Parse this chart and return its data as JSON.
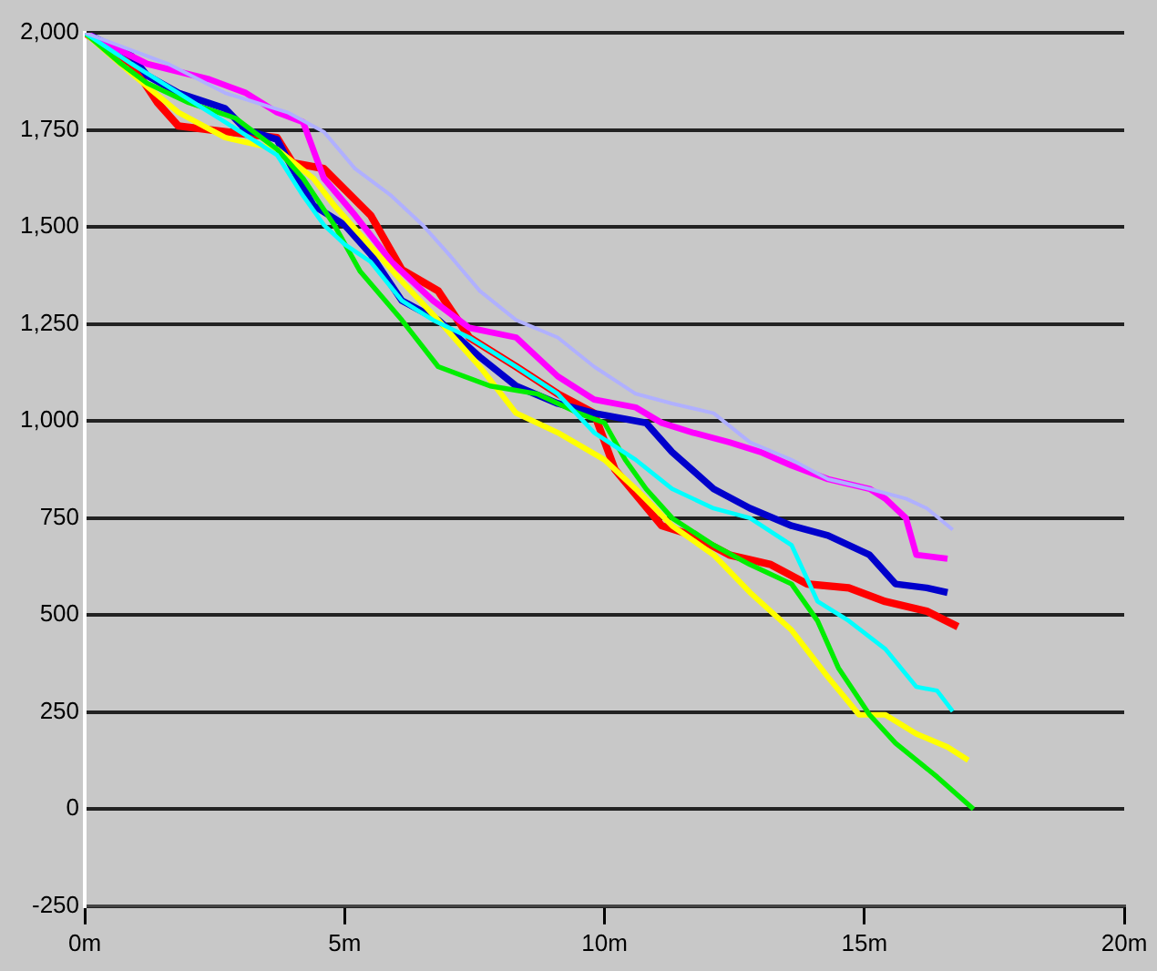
{
  "chart_data": {
    "type": "line",
    "xlim": [
      0,
      20
    ],
    "ylim": [
      -250,
      2000
    ],
    "xticks": [
      {
        "value": 0,
        "label": "0m"
      },
      {
        "value": 5,
        "label": "5m"
      },
      {
        "value": 10,
        "label": "10m"
      },
      {
        "value": 15,
        "label": "15m"
      },
      {
        "value": 20,
        "label": "20m"
      }
    ],
    "yticks": [
      {
        "value": -250,
        "label": "-250"
      },
      0,
      250,
      500,
      750,
      {
        "value": 1000,
        "label": "1,000"
      },
      {
        "value": 1250,
        "label": "1,250"
      },
      {
        "value": 1500,
        "label": "1,500"
      },
      {
        "value": 1750,
        "label": "1,750"
      },
      {
        "value": 2000,
        "label": "2,000"
      }
    ],
    "grid": "y",
    "legend": false,
    "marker": "none",
    "line_style": "solid",
    "series": [
      {
        "color": "#b0b0ff",
        "x": [
          0,
          1.6,
          2.7,
          3.9,
          4.6,
          5.2,
          5.9,
          6.5,
          7.0,
          7.6,
          8.3,
          9.1,
          9.8,
          10.6,
          11.3,
          12.1,
          12.8,
          13.6,
          14.3,
          15.1,
          15.8,
          16.2,
          16.7
        ],
        "values": [
          2000,
          1920,
          1845,
          1795,
          1745,
          1650,
          1580,
          1505,
          1430,
          1335,
          1260,
          1215,
          1140,
          1070,
          1045,
          1020,
          945,
          900,
          850,
          825,
          800,
          775,
          720
        ]
      },
      {
        "color": "#00ffff",
        "x": [
          0,
          0.9,
          1.8,
          2.7,
          3.7,
          4.2,
          4.6,
          5.0,
          5.5,
          6.1,
          6.7,
          7.4,
          8.3,
          9.1,
          9.8,
          10.6,
          11.3,
          12.1,
          12.8,
          13.6,
          14.1,
          14.7,
          15.4,
          16.0,
          16.4,
          16.7
        ],
        "values": [
          2000,
          1920,
          1845,
          1770,
          1685,
          1580,
          1505,
          1455,
          1410,
          1310,
          1260,
          1215,
          1140,
          1070,
          970,
          900,
          825,
          775,
          750,
          680,
          535,
          485,
          413,
          315,
          305,
          252
        ]
      },
      {
        "color": "#00ee00",
        "x": [
          0,
          0.7,
          1.2,
          2.0,
          2.9,
          3.7,
          4.2,
          4.8,
          5.3,
          6.1,
          6.8,
          7.8,
          8.7,
          9.5,
          10.0,
          10.4,
          10.8,
          11.3,
          12.1,
          12.8,
          13.6,
          14.1,
          14.5,
          15.1,
          15.6,
          16.4,
          17.1
        ],
        "values": [
          2000,
          1920,
          1870,
          1820,
          1780,
          1700,
          1625,
          1505,
          1385,
          1260,
          1140,
          1090,
          1070,
          1020,
          995,
          900,
          825,
          750,
          680,
          630,
          580,
          485,
          364,
          243,
          170,
          83,
          0
        ]
      },
      {
        "color": "#ffff00",
        "x": [
          0,
          0.9,
          1.8,
          2.7,
          3.7,
          4.4,
          4.8,
          5.3,
          6.1,
          6.8,
          7.6,
          8.3,
          9.1,
          10.0,
          10.6,
          11.3,
          12.1,
          12.8,
          13.6,
          14.3,
          14.9,
          15.4,
          16.0,
          16.6,
          17.0
        ],
        "values": [
          2000,
          1895,
          1795,
          1730,
          1700,
          1625,
          1555,
          1480,
          1360,
          1260,
          1140,
          1020,
          970,
          900,
          825,
          730,
          655,
          558,
          461,
          340,
          243,
          243,
          194,
          160,
          126
        ]
      },
      {
        "color": "#ff00ff",
        "x": [
          0,
          1.2,
          2.4,
          3.1,
          3.7,
          4.2,
          4.6,
          5.2,
          5.9,
          6.7,
          7.4,
          8.3,
          9.1,
          9.8,
          10.6,
          11.1,
          11.7,
          12.4,
          13.0,
          13.6,
          14.3,
          15.1,
          15.4,
          15.8,
          16.0,
          16.6
        ],
        "values": [
          2000,
          1920,
          1880,
          1845,
          1795,
          1770,
          1625,
          1530,
          1410,
          1310,
          1240,
          1215,
          1115,
          1055,
          1035,
          995,
          970,
          945,
          920,
          885,
          850,
          825,
          800,
          750,
          655,
          645
        ]
      },
      {
        "color": "#0000cc",
        "x": [
          0,
          0.9,
          1.2,
          1.8,
          2.7,
          3.1,
          3.7,
          4.0,
          4.4,
          5.0,
          5.5,
          6.1,
          6.8,
          7.6,
          8.3,
          9.1,
          9.8,
          10.8,
          11.3,
          12.1,
          12.8,
          13.6,
          14.3,
          15.1,
          15.6,
          16.2,
          16.6
        ],
        "values": [
          2000,
          1940,
          1890,
          1845,
          1805,
          1750,
          1725,
          1650,
          1555,
          1505,
          1430,
          1310,
          1260,
          1165,
          1090,
          1045,
          1020,
          995,
          920,
          825,
          775,
          730,
          705,
          655,
          580,
          570,
          558
        ]
      },
      {
        "color": "#ff0000",
        "x": [
          0,
          0.9,
          1.4,
          1.8,
          2.7,
          3.7,
          4.0,
          4.6,
          5.5,
          6.1,
          6.8,
          7.4,
          8.3,
          9.1,
          9.8,
          10.2,
          11.1,
          11.7,
          12.4,
          13.2,
          13.9,
          14.7,
          15.4,
          16.2,
          16.8
        ],
        "values": [
          2000,
          1920,
          1820,
          1760,
          1745,
          1730,
          1665,
          1650,
          1530,
          1390,
          1335,
          1215,
          1140,
          1070,
          1020,
          875,
          730,
          705,
          655,
          630,
          580,
          570,
          535,
          510,
          470
        ]
      }
    ]
  }
}
